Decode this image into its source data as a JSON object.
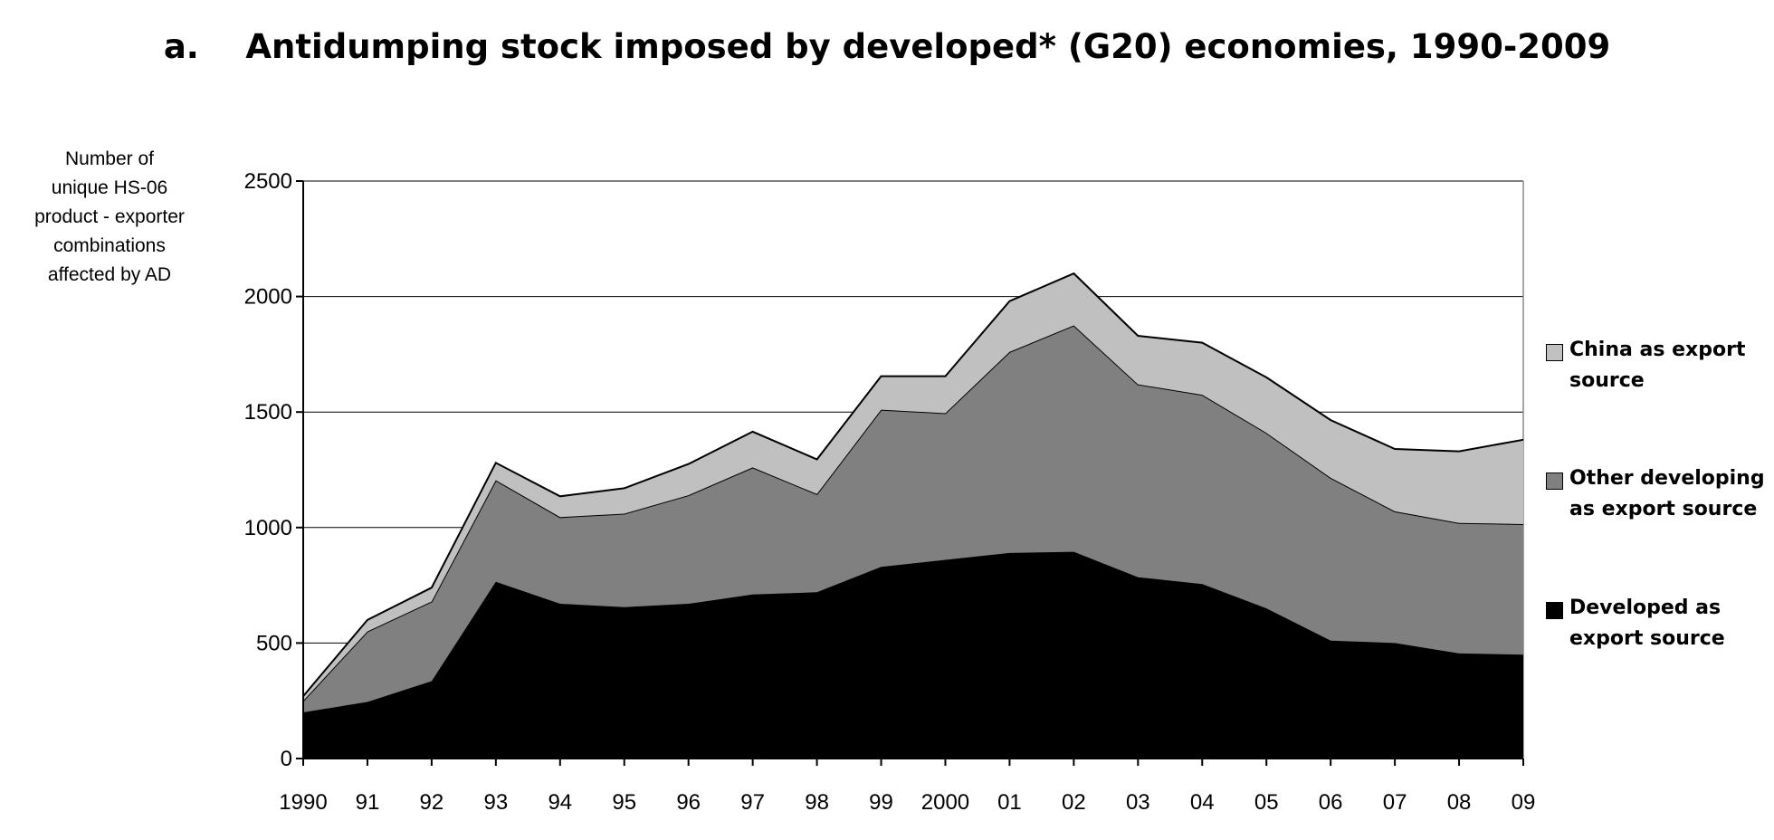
{
  "chart_data": {
    "type": "area",
    "stacked": true,
    "title": "a.    Antidumping stock imposed by developed* (G20) economies, 1990-2009",
    "ylabel_lines": [
      "Number of",
      "unique HS-06",
      "product - exporter",
      "combinations",
      "affected by AD"
    ],
    "xlabel": "",
    "categories": [
      "1990",
      "91",
      "92",
      "93",
      "94",
      "95",
      "96",
      "97",
      "98",
      "99",
      "2000",
      "01",
      "02",
      "03",
      "04",
      "05",
      "06",
      "07",
      "08",
      "09"
    ],
    "ylim": [
      0,
      2500
    ],
    "yticks": [
      0,
      500,
      1000,
      1500,
      2000,
      2500
    ],
    "grid": true,
    "legend_position": "right",
    "series": [
      {
        "key": "developed",
        "name_lines": [
          "Developed as",
          "export source"
        ],
        "color": "#000000",
        "values": [
          200,
          245,
          335,
          765,
          670,
          655,
          670,
          710,
          720,
          830,
          860,
          890,
          895,
          785,
          755,
          650,
          510,
          500,
          455,
          450
        ]
      },
      {
        "key": "other",
        "name_lines": [
          "Other developing",
          "as export source"
        ],
        "color": "#808080",
        "values": [
          50,
          305,
          345,
          440,
          375,
          405,
          470,
          550,
          425,
          680,
          635,
          870,
          980,
          835,
          820,
          760,
          705,
          570,
          565,
          565
        ]
      },
      {
        "key": "china",
        "name_lines": [
          "China as export",
          "source"
        ],
        "color": "#c0c0c0",
        "values": [
          20,
          50,
          60,
          75,
          90,
          110,
          135,
          155,
          150,
          145,
          160,
          220,
          225,
          210,
          225,
          240,
          250,
          270,
          310,
          365
        ]
      }
    ]
  }
}
